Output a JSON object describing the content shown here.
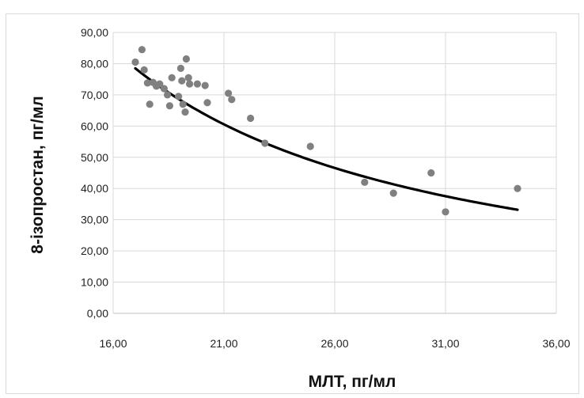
{
  "chart_data": {
    "type": "scatter",
    "title": "",
    "xlabel": "МЛТ, пг/мл",
    "ylabel": "8-ізопростан, пг/мл",
    "xlim": [
      16,
      36
    ],
    "ylim": [
      0,
      90
    ],
    "x_ticks": [
      16,
      21,
      26,
      31,
      36
    ],
    "x_tick_labels": [
      "16,00",
      "21,00",
      "26,00",
      "31,00",
      "36,00"
    ],
    "y_ticks": [
      0,
      10,
      20,
      30,
      40,
      50,
      60,
      70,
      80,
      90
    ],
    "y_tick_labels": [
      "0,00",
      "10,00",
      "20,00",
      "30,00",
      "40,00",
      "50,00",
      "60,00",
      "70,00",
      "80,00",
      "90,00"
    ],
    "grid": true,
    "legend": "none",
    "point_color": "#808080",
    "trend_color": "#000000",
    "points": [
      {
        "x": 17.0,
        "y": 80.5
      },
      {
        "x": 17.3,
        "y": 84.5
      },
      {
        "x": 17.4,
        "y": 78.0
      },
      {
        "x": 17.55,
        "y": 73.8
      },
      {
        "x": 17.65,
        "y": 67.0
      },
      {
        "x": 17.8,
        "y": 74.0
      },
      {
        "x": 17.95,
        "y": 72.8
      },
      {
        "x": 18.1,
        "y": 73.5
      },
      {
        "x": 18.3,
        "y": 72.0
      },
      {
        "x": 18.45,
        "y": 70.0
      },
      {
        "x": 18.55,
        "y": 66.5
      },
      {
        "x": 18.65,
        "y": 75.5
      },
      {
        "x": 18.95,
        "y": 69.5
      },
      {
        "x": 19.05,
        "y": 78.5
      },
      {
        "x": 19.1,
        "y": 74.5
      },
      {
        "x": 19.15,
        "y": 67.0
      },
      {
        "x": 19.25,
        "y": 64.5
      },
      {
        "x": 19.3,
        "y": 81.5
      },
      {
        "x": 19.4,
        "y": 75.5
      },
      {
        "x": 19.45,
        "y": 73.5
      },
      {
        "x": 19.8,
        "y": 73.5
      },
      {
        "x": 20.15,
        "y": 73.0
      },
      {
        "x": 20.25,
        "y": 67.5
      },
      {
        "x": 21.2,
        "y": 70.5
      },
      {
        "x": 21.35,
        "y": 68.5
      },
      {
        "x": 22.2,
        "y": 62.5
      },
      {
        "x": 22.85,
        "y": 54.5
      },
      {
        "x": 24.9,
        "y": 53.5
      },
      {
        "x": 27.35,
        "y": 42.0
      },
      {
        "x": 28.65,
        "y": 38.5
      },
      {
        "x": 30.35,
        "y": 45.0
      },
      {
        "x": 31.0,
        "y": 32.5
      },
      {
        "x": 34.25,
        "y": 40.0
      }
    ],
    "trendline": {
      "type": "power",
      "x_range": [
        17.0,
        34.25
      ],
      "y_start": 78.5,
      "y_end": 33.2
    }
  }
}
